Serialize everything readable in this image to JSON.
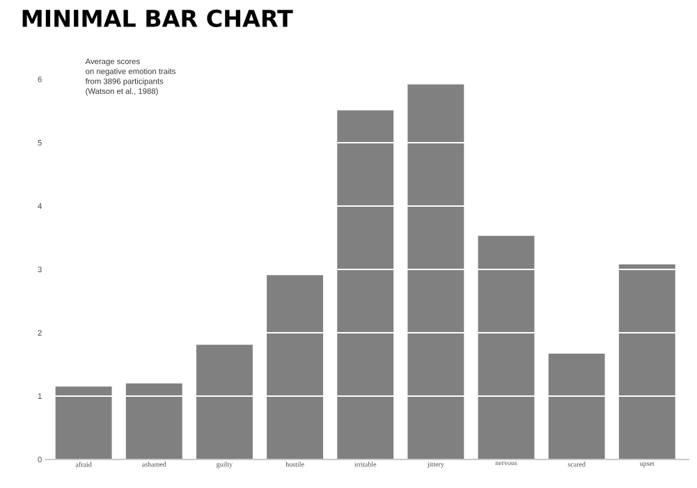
{
  "chart_data": {
    "type": "bar",
    "title": "MINIMAL BAR CHART",
    "annotations": [
      "Average scores",
      "on negative emotion traits",
      "from 3896 participants",
      "(Watson et al., 1988)"
    ],
    "categories": [
      "afraid",
      "ashamed",
      "guilty",
      "hostile",
      "irritable",
      "jittery",
      "nervous",
      "scared",
      "upset"
    ],
    "values": [
      1.15,
      1.2,
      1.81,
      2.91,
      5.51,
      5.92,
      3.53,
      1.67,
      3.08
    ],
    "color": "#808080",
    "ylim": [
      0,
      6
    ],
    "yticks": [
      0,
      1,
      2,
      3,
      4,
      5,
      6
    ],
    "grid": "y"
  }
}
